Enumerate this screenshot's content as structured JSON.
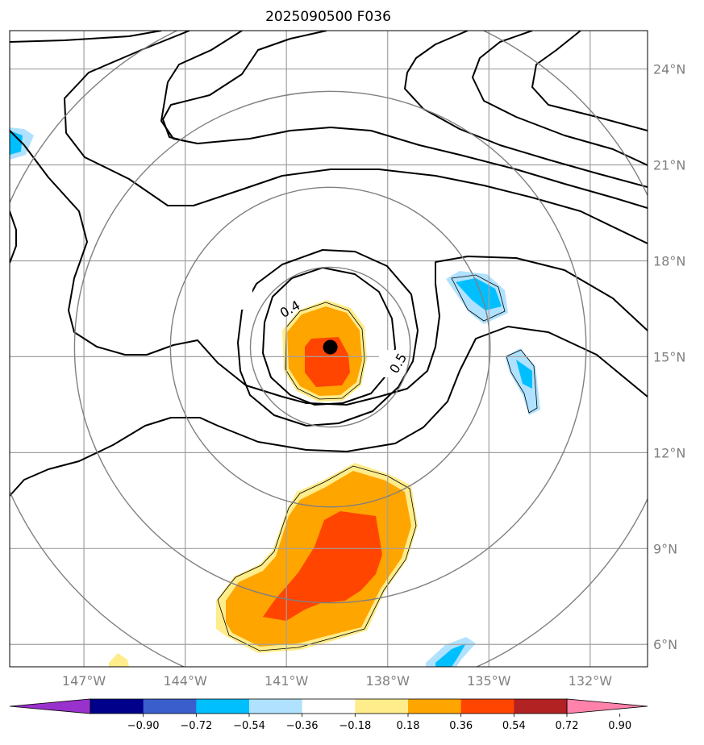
{
  "chart_data": {
    "type": "map-contour",
    "title": "2025090500 F036",
    "lon_range": [
      -149.2,
      -130.3
    ],
    "lat_range": [
      5.3,
      25.2
    ],
    "lon_ticks": [
      {
        "value": -147,
        "label": "147°W"
      },
      {
        "value": -144,
        "label": "144°W"
      },
      {
        "value": -141,
        "label": "141°W"
      },
      {
        "value": -138,
        "label": "138°W"
      },
      {
        "value": -135,
        "label": "135°W"
      },
      {
        "value": -132,
        "label": "132°W"
      }
    ],
    "lat_ticks": [
      {
        "value": 24,
        "label": "24°N"
      },
      {
        "value": 21,
        "label": "21°N"
      },
      {
        "value": 18,
        "label": "18°N"
      },
      {
        "value": 15,
        "label": "15°N"
      },
      {
        "value": 12,
        "label": "12°N"
      },
      {
        "value": 9,
        "label": "9°N"
      },
      {
        "value": 6,
        "label": "6°N"
      }
    ],
    "storm_center": {
      "lon": -139.7,
      "lat": 15.3
    },
    "range_ring_radii_deg": [
      2.5,
      5,
      8,
      11
    ],
    "contour_labels": [
      {
        "text": "0.4",
        "lon": -140.9,
        "lat": 16.5
      },
      {
        "text": "0.5",
        "lon": -137.7,
        "lat": 14.8
      }
    ],
    "colorbar": {
      "colors": [
        "#9932cc",
        "#00008b",
        "#3a5fcd",
        "#00bfff",
        "#b0e2ff",
        "#ffffff",
        "#ffec8b",
        "#ffa500",
        "#ff4500",
        "#b22222",
        "#ff82ab"
      ],
      "ticks": [
        "−0.90",
        "−0.72",
        "−0.54",
        "−0.36",
        "−0.18",
        "0.18",
        "0.36",
        "0.54",
        "0.72",
        "0.90"
      ]
    }
  }
}
